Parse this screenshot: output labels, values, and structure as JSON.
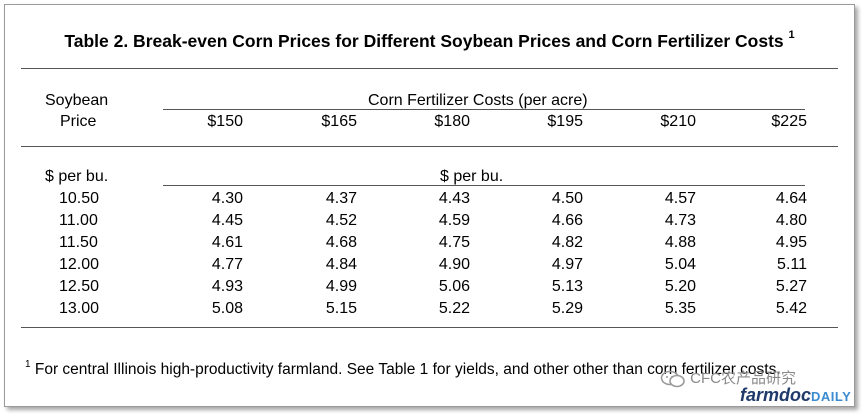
{
  "title": "Table 2.  Break-even Corn Prices for Different Soybean Prices and Corn Fertilizer Costs",
  "title_footnote_mark": "1",
  "row_header_line1": "Soybean",
  "row_header_line2": "Price",
  "column_group_header": "Corn Fertilizer Costs (per acre)",
  "columns": [
    "$150",
    "$165",
    "$180",
    "$195",
    "$210",
    "$225"
  ],
  "row_units": "$ per bu.",
  "value_units": "$ per bu.",
  "rows": [
    {
      "price": "10.50",
      "values": [
        "4.30",
        "4.37",
        "4.43",
        "4.50",
        "4.57",
        "4.64"
      ]
    },
    {
      "price": "11.00",
      "values": [
        "4.45",
        "4.52",
        "4.59",
        "4.66",
        "4.73",
        "4.80"
      ]
    },
    {
      "price": "11.50",
      "values": [
        "4.61",
        "4.68",
        "4.75",
        "4.82",
        "4.88",
        "4.95"
      ]
    },
    {
      "price": "12.00",
      "values": [
        "4.77",
        "4.84",
        "4.90",
        "4.97",
        "5.04",
        "5.11"
      ]
    },
    {
      "price": "12.50",
      "values": [
        "4.93",
        "4.99",
        "5.06",
        "5.13",
        "5.20",
        "5.27"
      ]
    },
    {
      "price": "13.00",
      "values": [
        "5.08",
        "5.15",
        "5.22",
        "5.29",
        "5.35",
        "5.42"
      ]
    }
  ],
  "footnote_mark": "1",
  "footnote_text": " For central Illinois high-productivity farmland.  See Table 1 for yields, and other other than corn fertilizer costs.",
  "watermark": {
    "text": "CFC农产品研究",
    "icon": "wechat-bubble-icon"
  },
  "brand": {
    "name": "farmdoc",
    "suffix": "DAILY",
    "color": "#1f3a6b"
  }
}
